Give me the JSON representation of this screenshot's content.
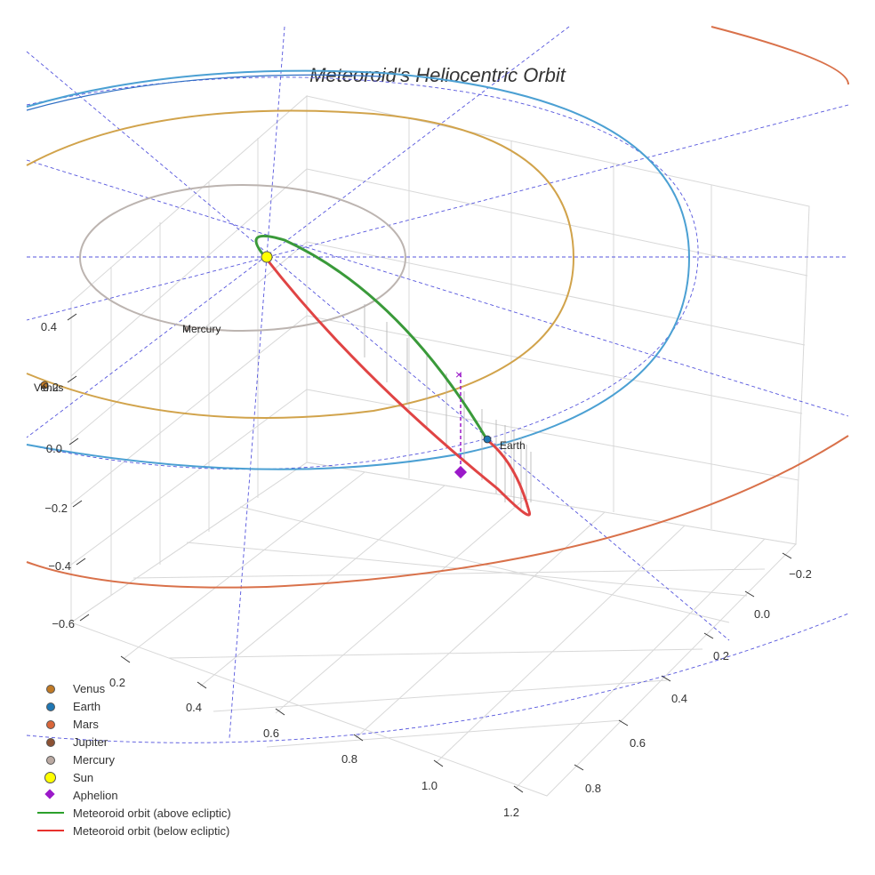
{
  "chart_data": {
    "type": "3d-line",
    "title": "Meteoroid's Heliocentric Orbit",
    "axes": {
      "x_ticks": [
        "0.2",
        "0.4",
        "0.6",
        "0.8",
        "1.0",
        "1.2"
      ],
      "y_ticks": [
        "−0.2",
        "0.0",
        "0.2",
        "0.4",
        "0.6",
        "0.8"
      ],
      "z_ticks": [
        "0.4",
        "0.2",
        "0.0",
        "−0.2",
        "−0.4",
        "−0.6"
      ]
    },
    "grid": true,
    "legend_position": "bottom-left",
    "point_labels": {
      "mercury": "Mercury",
      "venus": "Venus",
      "earth": "Earth"
    },
    "series": [
      {
        "name": "Venus",
        "kind": "marker",
        "color": "#c07a26"
      },
      {
        "name": "Earth",
        "kind": "marker",
        "color": "#1f77b4"
      },
      {
        "name": "Mars",
        "kind": "marker",
        "color": "#d9663a"
      },
      {
        "name": "Jupiter",
        "kind": "marker",
        "color": "#8c5133"
      },
      {
        "name": "Mercury",
        "kind": "marker",
        "color": "#bbaaa3"
      },
      {
        "name": "Sun",
        "kind": "big-marker",
        "color": "#ffff00"
      },
      {
        "name": "Aphelion",
        "kind": "diamond",
        "color": "#9b19c9"
      },
      {
        "name": "Meteoroid orbit (above ecliptic)",
        "kind": "line",
        "color": "#2ca02c"
      },
      {
        "name": "Meteoroid orbit (below ecliptic)",
        "kind": "line",
        "color": "#e8312d"
      }
    ],
    "orbit_colors": {
      "mercury": "#bcb4b0",
      "venus": "#d1a34b",
      "earth_outer": "#4ba0d3",
      "earth_inner": "#2f6fc4",
      "mars": "#d9714a",
      "reference": "#5555dd"
    }
  }
}
